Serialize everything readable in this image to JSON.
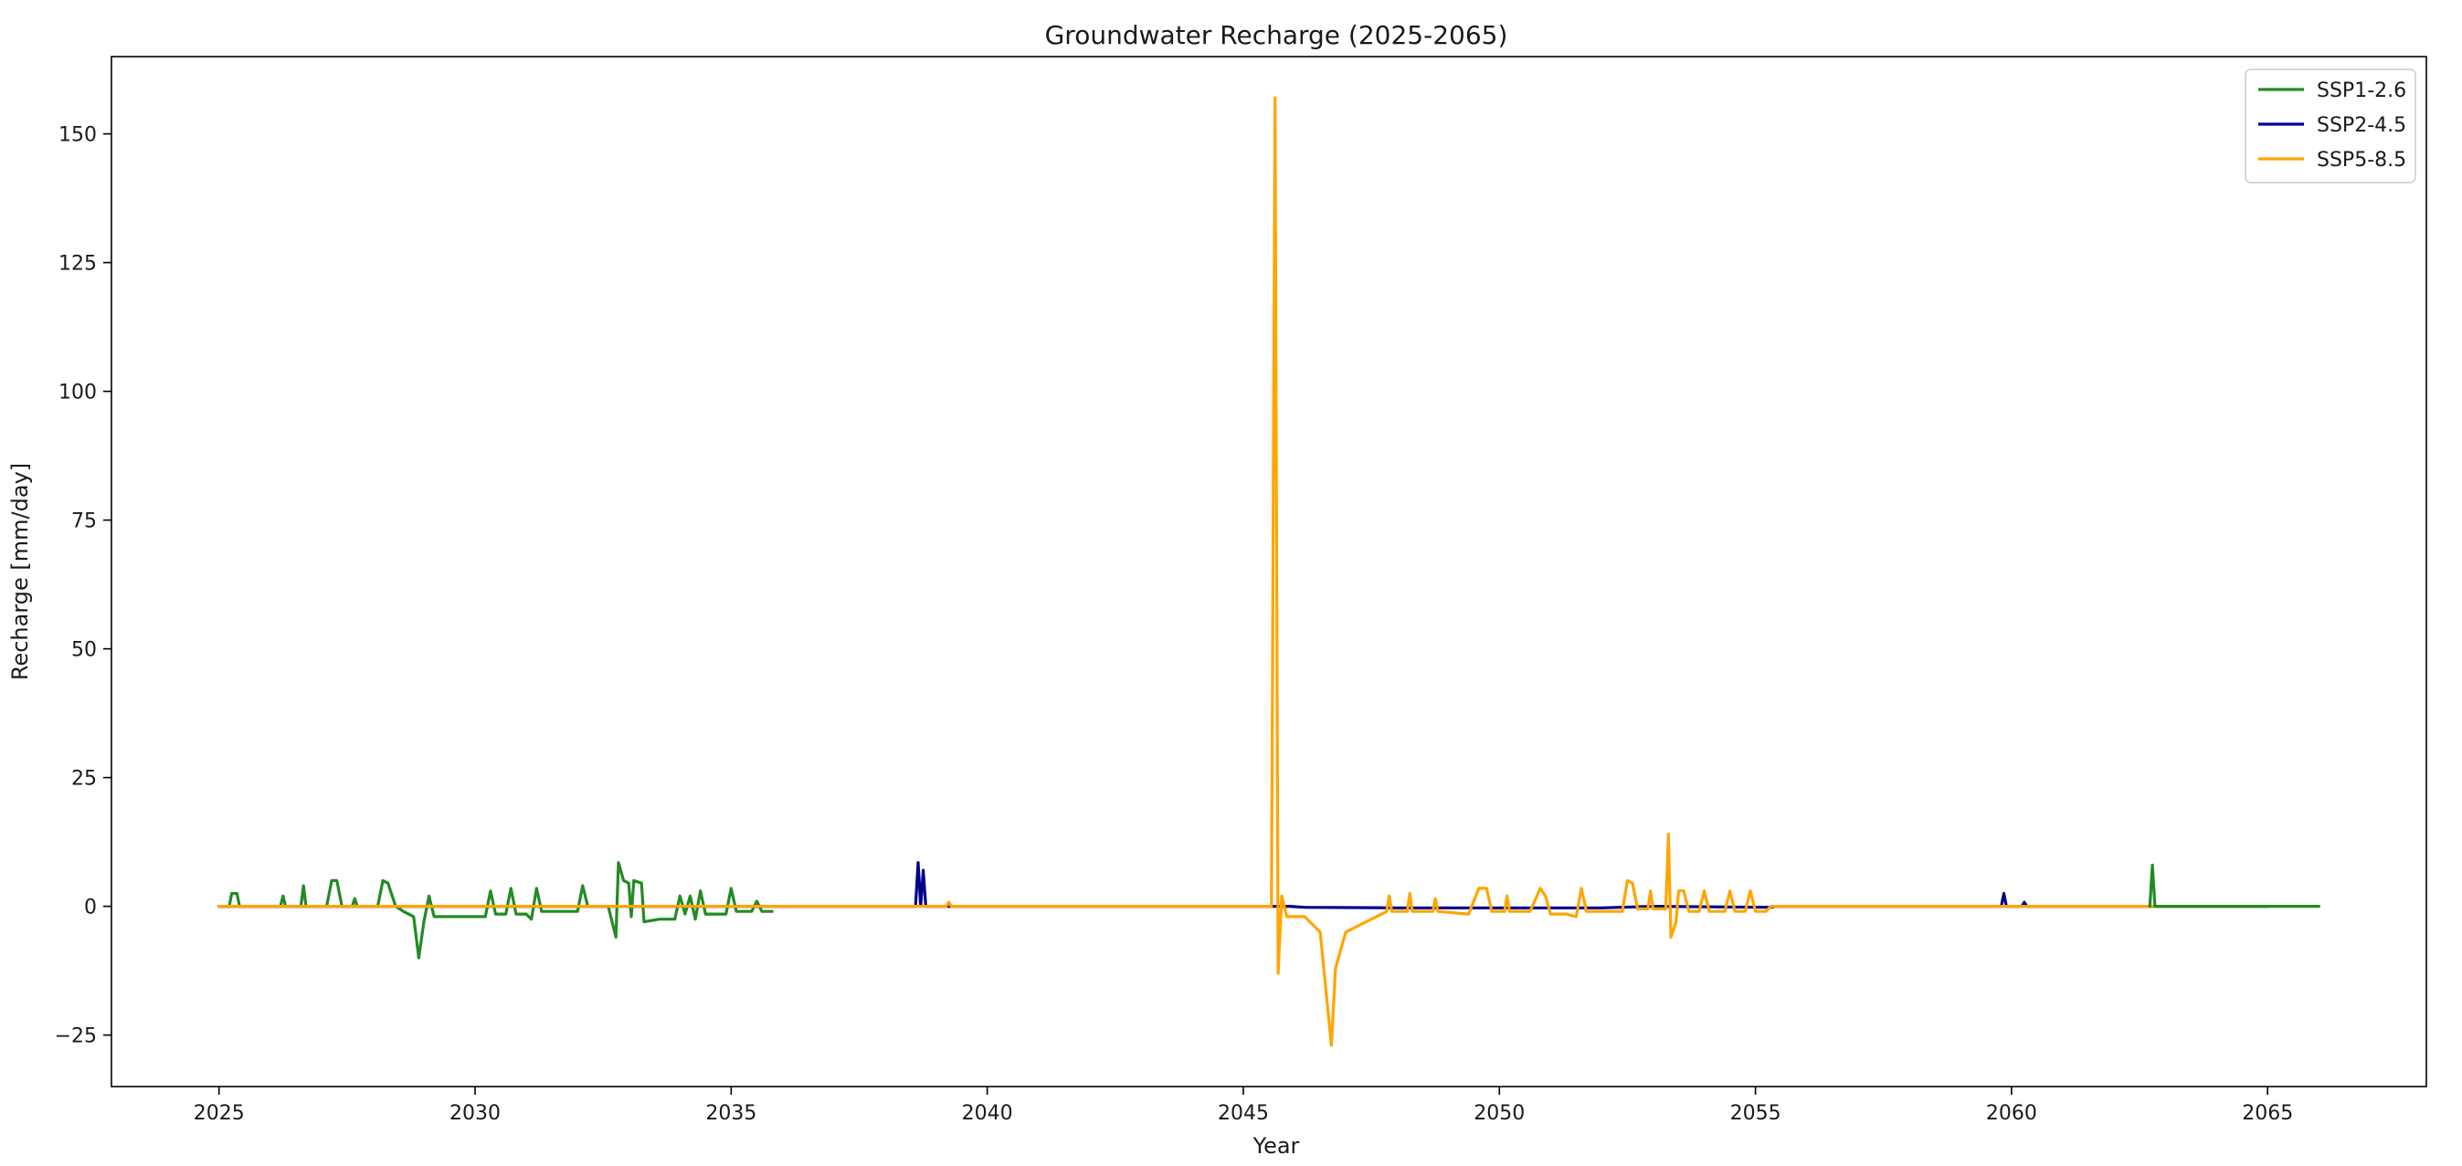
{
  "chart_data": {
    "type": "line",
    "title": "Groundwater Recharge (2025-2065)",
    "xlabel": "Year",
    "ylabel": "Recharge [mm/day]",
    "xlim": [
      2022.9,
      2068.1
    ],
    "ylim": [
      -35,
      165
    ],
    "xticks": [
      2025,
      2030,
      2035,
      2040,
      2045,
      2050,
      2055,
      2060,
      2065
    ],
    "yticks": [
      -25,
      0,
      25,
      50,
      75,
      100,
      125,
      150
    ],
    "grid": false,
    "legend_position": "top-right",
    "series": [
      {
        "name": "SSP1-2.6",
        "color": "#228b22",
        "points": [
          [
            2025.0,
            0
          ],
          [
            2025.2,
            0
          ],
          [
            2025.25,
            2.5
          ],
          [
            2025.35,
            2.5
          ],
          [
            2025.4,
            0
          ],
          [
            2026.2,
            0
          ],
          [
            2026.25,
            2
          ],
          [
            2026.3,
            0
          ],
          [
            2026.6,
            0
          ],
          [
            2026.65,
            4
          ],
          [
            2026.7,
            0
          ],
          [
            2027.1,
            0
          ],
          [
            2027.2,
            5
          ],
          [
            2027.3,
            5
          ],
          [
            2027.4,
            0
          ],
          [
            2027.6,
            0
          ],
          [
            2027.65,
            1.5
          ],
          [
            2027.7,
            0
          ],
          [
            2028.1,
            0
          ],
          [
            2028.2,
            5
          ],
          [
            2028.3,
            4.5
          ],
          [
            2028.45,
            0
          ],
          [
            2028.6,
            -1
          ],
          [
            2028.8,
            -2
          ],
          [
            2028.9,
            -10
          ],
          [
            2029.0,
            -3
          ],
          [
            2029.1,
            2
          ],
          [
            2029.2,
            -2
          ],
          [
            2030.2,
            -2
          ],
          [
            2030.3,
            3
          ],
          [
            2030.4,
            -1.5
          ],
          [
            2030.6,
            -1.5
          ],
          [
            2030.7,
            3.5
          ],
          [
            2030.8,
            -1.5
          ],
          [
            2031.0,
            -1.5
          ],
          [
            2031.1,
            -2.5
          ],
          [
            2031.2,
            3.5
          ],
          [
            2031.3,
            -1
          ],
          [
            2032.0,
            -1
          ],
          [
            2032.1,
            4
          ],
          [
            2032.2,
            0
          ],
          [
            2032.6,
            0
          ],
          [
            2032.75,
            -6
          ],
          [
            2032.8,
            8.5
          ],
          [
            2032.9,
            5
          ],
          [
            2033.0,
            4.5
          ],
          [
            2033.05,
            -2
          ],
          [
            2033.1,
            5
          ],
          [
            2033.25,
            4.5
          ],
          [
            2033.3,
            -3
          ],
          [
            2033.6,
            -2.5
          ],
          [
            2033.9,
            -2.5
          ],
          [
            2034.0,
            2
          ],
          [
            2034.1,
            -1.5
          ],
          [
            2034.2,
            2
          ],
          [
            2034.3,
            -2.5
          ],
          [
            2034.4,
            3
          ],
          [
            2034.5,
            -1.5
          ],
          [
            2034.9,
            -1.5
          ],
          [
            2035.0,
            3.5
          ],
          [
            2035.1,
            -1
          ],
          [
            2035.4,
            -1
          ],
          [
            2035.5,
            1
          ],
          [
            2035.6,
            -1
          ],
          [
            2035.8,
            -1
          ]
        ]
      },
      {
        "name": "SSP2-4.5",
        "color": "#00008b",
        "points": [
          [
            2025.0,
            0
          ],
          [
            2038.6,
            0
          ],
          [
            2038.65,
            8.5
          ],
          [
            2038.7,
            0
          ],
          [
            2038.75,
            7
          ],
          [
            2038.8,
            0
          ],
          [
            2045.6,
            0
          ],
          [
            2045.9,
            0
          ],
          [
            2046.2,
            -0.2
          ],
          [
            2048.0,
            -0.3
          ],
          [
            2052.0,
            -0.3
          ],
          [
            2053.0,
            0
          ],
          [
            2055.3,
            -0.2
          ],
          [
            2055.4,
            0
          ],
          [
            2059.8,
            0
          ],
          [
            2059.85,
            2.5
          ],
          [
            2059.9,
            0
          ],
          [
            2060.2,
            0
          ],
          [
            2060.25,
            0.8
          ],
          [
            2060.3,
            0
          ],
          [
            2065.0,
            0
          ]
        ]
      },
      {
        "name": "SSP5-8.5",
        "color": "#ffa500",
        "points": [
          [
            2025.0,
            0
          ],
          [
            2039.2,
            0
          ],
          [
            2039.25,
            0.8
          ],
          [
            2039.3,
            0
          ],
          [
            2045.55,
            0
          ],
          [
            2045.62,
            157
          ],
          [
            2045.68,
            -13
          ],
          [
            2045.75,
            2
          ],
          [
            2045.85,
            -2
          ],
          [
            2046.2,
            -2
          ],
          [
            2046.5,
            -5
          ],
          [
            2046.65,
            -20
          ],
          [
            2046.72,
            -27
          ],
          [
            2046.8,
            -12
          ],
          [
            2047.0,
            -5
          ],
          [
            2047.2,
            -4
          ],
          [
            2047.4,
            -3
          ],
          [
            2047.6,
            -2
          ],
          [
            2047.8,
            -1
          ],
          [
            2047.85,
            2
          ],
          [
            2047.9,
            -1
          ],
          [
            2048.2,
            -1
          ],
          [
            2048.25,
            2.5
          ],
          [
            2048.3,
            -1
          ],
          [
            2048.7,
            -1
          ],
          [
            2048.75,
            1.5
          ],
          [
            2048.8,
            -1
          ],
          [
            2049.4,
            -1.5
          ],
          [
            2049.5,
            1
          ],
          [
            2049.6,
            3.5
          ],
          [
            2049.75,
            3.5
          ],
          [
            2049.85,
            -1
          ],
          [
            2050.1,
            -1
          ],
          [
            2050.15,
            2
          ],
          [
            2050.2,
            -1
          ],
          [
            2050.6,
            -1
          ],
          [
            2050.8,
            3.5
          ],
          [
            2050.9,
            2
          ],
          [
            2051.0,
            -1.5
          ],
          [
            2051.3,
            -1.5
          ],
          [
            2051.5,
            -2
          ],
          [
            2051.6,
            3.5
          ],
          [
            2051.7,
            -1
          ],
          [
            2052.4,
            -1
          ],
          [
            2052.5,
            5
          ],
          [
            2052.6,
            4.5
          ],
          [
            2052.7,
            -0.5
          ],
          [
            2052.9,
            -0.5
          ],
          [
            2052.95,
            3
          ],
          [
            2053.0,
            -0.5
          ],
          [
            2053.25,
            -0.5
          ],
          [
            2053.3,
            14
          ],
          [
            2053.35,
            -6
          ],
          [
            2053.45,
            -3
          ],
          [
            2053.5,
            3
          ],
          [
            2053.6,
            3
          ],
          [
            2053.7,
            -1
          ],
          [
            2053.9,
            -1
          ],
          [
            2054.0,
            3
          ],
          [
            2054.1,
            -1
          ],
          [
            2054.4,
            -1
          ],
          [
            2054.5,
            3
          ],
          [
            2054.6,
            -1
          ],
          [
            2054.8,
            -1
          ],
          [
            2054.9,
            3
          ],
          [
            2055.0,
            -1
          ],
          [
            2055.2,
            -1
          ],
          [
            2055.3,
            0
          ],
          [
            2065.0,
            0
          ]
        ]
      },
      {
        "name": "",
        "color": "#228b22",
        "points": [
          [
            2062.7,
            0
          ],
          [
            2062.75,
            8
          ],
          [
            2062.8,
            0
          ],
          [
            2065.0,
            0
          ],
          [
            2066.0,
            0
          ]
        ]
      }
    ]
  }
}
